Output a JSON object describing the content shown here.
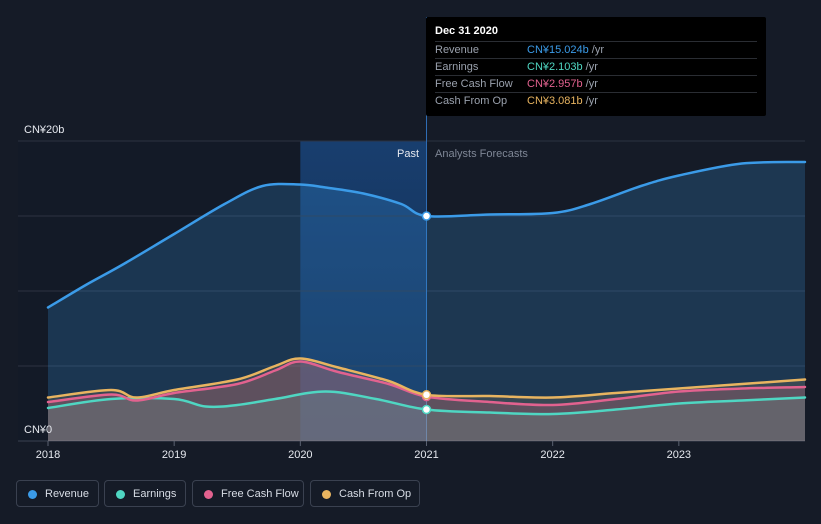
{
  "chart_data": {
    "type": "area",
    "y_unit_label_top": "CN¥20b",
    "y_unit_label_bottom": "CN¥0",
    "ylim": [
      0,
      20
    ],
    "x_ticks": [
      "2018",
      "2019",
      "2020",
      "2021",
      "2022",
      "2023"
    ],
    "xlim": [
      2018,
      2024
    ],
    "past_label": "Past",
    "forecast_label": "Analysts Forecasts",
    "divider_x": 2021.0,
    "highlight_range": [
      2020.0,
      2021.0
    ],
    "series": [
      {
        "name": "Revenue",
        "color": "#3b9be8",
        "x": [
          2018.0,
          2018.3,
          2018.6,
          2019.0,
          2019.4,
          2019.7,
          2020.0,
          2020.2,
          2020.5,
          2020.8,
          2021.0,
          2021.5,
          2022.0,
          2022.3,
          2022.7,
          2023.0,
          2023.5,
          2024.0
        ],
        "y": [
          8.9,
          10.4,
          11.8,
          13.8,
          15.8,
          17.0,
          17.1,
          16.9,
          16.5,
          15.8,
          15.0,
          15.1,
          15.2,
          15.8,
          17.0,
          17.7,
          18.5,
          18.6
        ]
      },
      {
        "name": "Earnings",
        "color": "#4fd6c2",
        "x": [
          2018.0,
          2018.5,
          2019.0,
          2019.25,
          2019.5,
          2019.8,
          2020.2,
          2020.6,
          2021.0,
          2021.5,
          2022.0,
          2022.5,
          2023.0,
          2023.5,
          2024.0
        ],
        "y": [
          2.2,
          2.8,
          2.8,
          2.3,
          2.4,
          2.8,
          3.3,
          2.8,
          2.1,
          1.9,
          1.8,
          2.1,
          2.5,
          2.7,
          2.9
        ]
      },
      {
        "name": "Free Cash Flow",
        "color": "#e2628f",
        "x": [
          2018.0,
          2018.5,
          2018.7,
          2019.0,
          2019.5,
          2019.8,
          2020.0,
          2020.3,
          2020.7,
          2021.0,
          2021.5,
          2022.0,
          2022.5,
          2023.0,
          2023.5,
          2024.0
        ],
        "y": [
          2.6,
          3.1,
          2.7,
          3.2,
          3.8,
          4.7,
          5.3,
          4.6,
          3.8,
          2.96,
          2.6,
          2.4,
          2.8,
          3.3,
          3.5,
          3.6
        ]
      },
      {
        "name": "Cash From Op",
        "color": "#e8b460",
        "x": [
          2018.0,
          2018.5,
          2018.7,
          2019.0,
          2019.5,
          2019.8,
          2020.0,
          2020.3,
          2020.7,
          2021.0,
          2021.5,
          2022.0,
          2022.5,
          2023.0,
          2023.5,
          2024.0
        ],
        "y": [
          2.9,
          3.4,
          2.9,
          3.4,
          4.1,
          5.0,
          5.5,
          4.9,
          4.0,
          3.08,
          3.0,
          2.9,
          3.2,
          3.5,
          3.8,
          4.1
        ]
      }
    ]
  },
  "tooltip": {
    "date": "Dec 31 2020",
    "rows": [
      {
        "label": "Revenue",
        "value": "CN¥15.024b",
        "unit": "/yr",
        "color": "#3b9be8"
      },
      {
        "label": "Earnings",
        "value": "CN¥2.103b",
        "unit": "/yr",
        "color": "#4fd6c2"
      },
      {
        "label": "Free Cash Flow",
        "value": "CN¥2.957b",
        "unit": "/yr",
        "color": "#e2628f"
      },
      {
        "label": "Cash From Op",
        "value": "CN¥3.081b",
        "unit": "/yr",
        "color": "#e8b460"
      }
    ]
  },
  "legend": [
    {
      "label": "Revenue",
      "color": "#3b9be8"
    },
    {
      "label": "Earnings",
      "color": "#4fd6c2"
    },
    {
      "label": "Free Cash Flow",
      "color": "#e2628f"
    },
    {
      "label": "Cash From Op",
      "color": "#e8b460"
    }
  ]
}
